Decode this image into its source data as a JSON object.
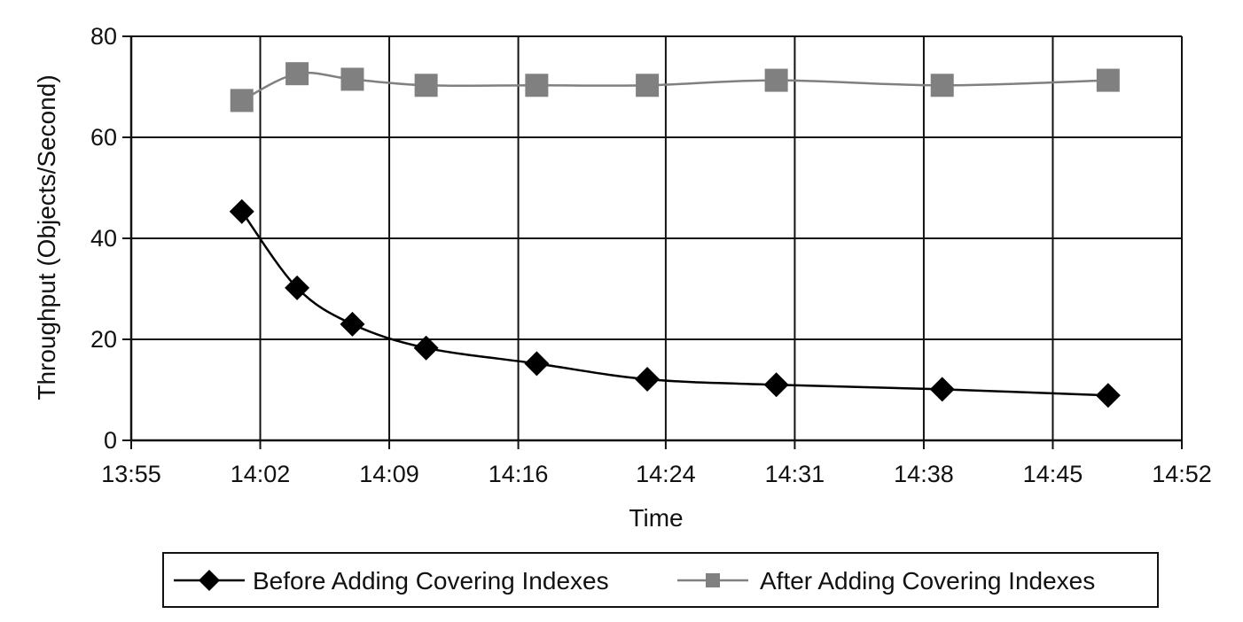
{
  "chart_data": {
    "type": "line",
    "xlabel": "Time",
    "ylabel": "Throughput (Objects/Second)",
    "ylim": [
      0,
      80
    ],
    "yticks": [
      0,
      20,
      40,
      60,
      80
    ],
    "xlim": [
      "13:55",
      "14:52"
    ],
    "xticks": [
      "13:55",
      "14:02",
      "14:09",
      "14:16",
      "14:24",
      "14:31",
      "14:38",
      "14:45",
      "14:52"
    ],
    "grid": true,
    "legend_position": "bottom",
    "series": [
      {
        "name": "Before Adding Covering Indexes",
        "marker": "diamond",
        "color": "#000000",
        "x": [
          "14:01",
          "14:04",
          "14:07",
          "14:11",
          "14:17",
          "14:23",
          "14:30",
          "14:39",
          "14:48"
        ],
        "y": [
          45.3,
          30.2,
          23.0,
          18.3,
          15.2,
          12.1,
          11.0,
          10.1,
          8.9
        ]
      },
      {
        "name": "After Adding Covering Indexes",
        "marker": "square",
        "color": "#808080",
        "x": [
          "14:01",
          "14:04",
          "14:07",
          "14:11",
          "14:17",
          "14:23",
          "14:30",
          "14:39",
          "14:48"
        ],
        "y": [
          67.3,
          72.6,
          71.5,
          70.3,
          70.3,
          70.3,
          71.3,
          70.3,
          71.3
        ]
      }
    ]
  }
}
